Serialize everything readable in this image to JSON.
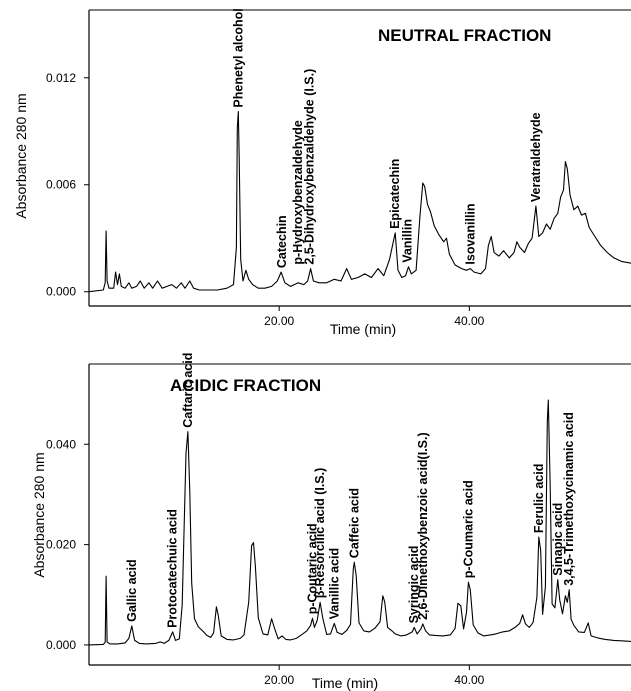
{
  "chart_data": [
    {
      "type": "line",
      "title": "NEUTRAL FRACTION",
      "xlabel": "Time (min)",
      "ylabel": "Absorbance 280 nm",
      "xlim": [
        0,
        57
      ],
      "ylim": [
        -0.0008,
        0.0158
      ],
      "xticks": [
        "20.00",
        "40.00"
      ],
      "xtick_values": [
        20,
        40
      ],
      "yticks": [
        "0.000",
        "0.006",
        "0.012"
      ],
      "ytick_values": [
        0,
        0.006,
        0.012
      ],
      "peak_labels": [
        {
          "text": "Phenetyl alcohol",
          "x": 15.7,
          "y": 0.0101
        },
        {
          "text": "Catechin",
          "x": 20.3,
          "y": 0.0011
        },
        {
          "text": "p-Hydroxybenzaldehyde",
          "x": 22.0,
          "y": 0.0013
        },
        {
          "text": "2,5-Dihydroxybenzaldehyde (I.S.)",
          "x": 23.2,
          "y": 0.0013
        },
        {
          "text": "Epicatechin",
          "x": 32.2,
          "y": 0.0033
        },
        {
          "text": "Vanillin",
          "x": 33.5,
          "y": 0.0014
        },
        {
          "text": "Isovanillin",
          "x": 40.1,
          "y": 0.0013
        },
        {
          "text": "Veratraldehyde",
          "x": 47.0,
          "y": 0.0048
        }
      ],
      "points": [
        [
          0,
          0
        ],
        [
          1.5,
          0.0001
        ],
        [
          1.7,
          0.0005
        ],
        [
          1.8,
          0.0034
        ],
        [
          1.9,
          0.0006
        ],
        [
          2.1,
          0.0002
        ],
        [
          2.6,
          0.0002
        ],
        [
          2.8,
          0.0011
        ],
        [
          3,
          0.0004
        ],
        [
          3.2,
          0.001
        ],
        [
          3.4,
          0.0003
        ],
        [
          3.8,
          0.0002
        ],
        [
          4.2,
          0.0005
        ],
        [
          4.5,
          0.0002
        ],
        [
          5,
          0.0003
        ],
        [
          5.4,
          0.0006
        ],
        [
          5.8,
          0.0002
        ],
        [
          6.3,
          0.0005
        ],
        [
          6.7,
          0.0002
        ],
        [
          7.2,
          0.0006
        ],
        [
          7.7,
          0.0002
        ],
        [
          8.2,
          0.0003
        ],
        [
          8.7,
          0.0004
        ],
        [
          9.2,
          0.0002
        ],
        [
          9.7,
          0.0005
        ],
        [
          10.1,
          0.0002
        ],
        [
          10.6,
          0.0006
        ],
        [
          11,
          0.0002
        ],
        [
          11.6,
          0.0001
        ],
        [
          12.5,
          0.0001
        ],
        [
          13.5,
          0.0001
        ],
        [
          14.5,
          0.0002
        ],
        [
          15.2,
          0.0004
        ],
        [
          15.5,
          0.0025
        ],
        [
          15.6,
          0.0092
        ],
        [
          15.7,
          0.0101
        ],
        [
          15.8,
          0.0075
        ],
        [
          15.95,
          0.0018
        ],
        [
          16.2,
          0.0006
        ],
        [
          16.5,
          0.0012
        ],
        [
          16.8,
          0.0007
        ],
        [
          17.2,
          0.0004
        ],
        [
          17.8,
          0.0002
        ],
        [
          18.5,
          0.0002
        ],
        [
          19.2,
          0.0003
        ],
        [
          19.8,
          0.0006
        ],
        [
          20.2,
          0.0011
        ],
        [
          20.6,
          0.0005
        ],
        [
          21.2,
          0.0003
        ],
        [
          22,
          0.0005
        ],
        [
          22.6,
          0.0004
        ],
        [
          23,
          0.0006
        ],
        [
          23.3,
          0.0013
        ],
        [
          23.6,
          0.0006
        ],
        [
          24.2,
          0.0005
        ],
        [
          25,
          0.0005
        ],
        [
          25.8,
          0.0007
        ],
        [
          26.5,
          0.0006
        ],
        [
          27.1,
          0.0013
        ],
        [
          27.6,
          0.0007
        ],
        [
          28.3,
          0.0008
        ],
        [
          29,
          0.001
        ],
        [
          29.7,
          0.0008
        ],
        [
          30.4,
          0.0013
        ],
        [
          31,
          0.0009
        ],
        [
          31.6,
          0.0018
        ],
        [
          32,
          0.0028
        ],
        [
          32.2,
          0.0033
        ],
        [
          32.5,
          0.0012
        ],
        [
          32.9,
          0.0008
        ],
        [
          33.3,
          0.0009
        ],
        [
          33.6,
          0.0014
        ],
        [
          33.9,
          0.001
        ],
        [
          34.4,
          0.0012
        ],
        [
          34.8,
          0.0042
        ],
        [
          35.1,
          0.0061
        ],
        [
          35.3,
          0.0059
        ],
        [
          35.6,
          0.0049
        ],
        [
          35.9,
          0.0045
        ],
        [
          36.3,
          0.0037
        ],
        [
          36.8,
          0.0032
        ],
        [
          37.3,
          0.0028
        ],
        [
          37.6,
          0.003
        ],
        [
          37.9,
          0.0021
        ],
        [
          38.5,
          0.0015
        ],
        [
          39.2,
          0.0013
        ],
        [
          39.7,
          0.0012
        ],
        [
          40.1,
          0.0013
        ],
        [
          40.5,
          0.0011
        ],
        [
          41.2,
          0.001
        ],
        [
          41.7,
          0.0013
        ],
        [
          42,
          0.0026
        ],
        [
          42.3,
          0.0031
        ],
        [
          42.6,
          0.0022
        ],
        [
          43.1,
          0.002
        ],
        [
          43.6,
          0.0023
        ],
        [
          44.2,
          0.0019
        ],
        [
          44.7,
          0.0022
        ],
        [
          45,
          0.0028
        ],
        [
          45.3,
          0.0025
        ],
        [
          45.8,
          0.0022
        ],
        [
          46.2,
          0.0027
        ],
        [
          46.6,
          0.003
        ],
        [
          47,
          0.0048
        ],
        [
          47.3,
          0.0031
        ],
        [
          47.7,
          0.0033
        ],
        [
          48.1,
          0.0038
        ],
        [
          48.5,
          0.0035
        ],
        [
          48.9,
          0.0041
        ],
        [
          49.3,
          0.0044
        ],
        [
          49.6,
          0.0053
        ],
        [
          49.9,
          0.0057
        ],
        [
          50.1,
          0.0073
        ],
        [
          50.3,
          0.0069
        ],
        [
          50.6,
          0.0054
        ],
        [
          51,
          0.0046
        ],
        [
          51.4,
          0.0048
        ],
        [
          51.8,
          0.0043
        ],
        [
          52.2,
          0.0044
        ],
        [
          52.6,
          0.0036
        ],
        [
          53.2,
          0.0031
        ],
        [
          53.8,
          0.0026
        ],
        [
          54.5,
          0.0022
        ],
        [
          55.2,
          0.0019
        ],
        [
          56,
          0.0017
        ],
        [
          57,
          0.0016
        ]
      ]
    },
    {
      "type": "line",
      "title": "ACIDIC FRACTION",
      "xlabel": "Time (min)",
      "ylabel": "Absorbance 280 nm",
      "xlim": [
        0,
        57
      ],
      "ylim": [
        -0.004,
        0.056
      ],
      "xticks": [
        "20.00",
        "40.00"
      ],
      "xtick_values": [
        20,
        40
      ],
      "yticks": [
        "0.000",
        "0.020",
        "0.040"
      ],
      "ytick_values": [
        0,
        0.02,
        0.04
      ],
      "peak_labels": [
        {
          "text": "Gallic acid",
          "x": 4.5,
          "y": 0.0038
        },
        {
          "text": "Protocatechuic acid",
          "x": 8.8,
          "y": 0.0026
        },
        {
          "text": "Caftaric acid",
          "x": 10.4,
          "y": 0.0425
        },
        {
          "text": "p-Coutaric acid",
          "x": 23.5,
          "y": 0.0053
        },
        {
          "text": "β-Resorcilic acid (I.S.)",
          "x": 24.3,
          "y": 0.0085
        },
        {
          "text": "Vanillic acid",
          "x": 25.8,
          "y": 0.0043
        },
        {
          "text": "Caffeic acid",
          "x": 27.9,
          "y": 0.0165
        },
        {
          "text": "Syringic acid",
          "x": 34.2,
          "y": 0.0035
        },
        {
          "text": "2,6-Dimethoxybenzoic acid(I.S.)",
          "x": 35.1,
          "y": 0.0042
        },
        {
          "text": "p-Coumaric acid",
          "x": 39.9,
          "y": 0.0125
        },
        {
          "text": "Ferulic acid",
          "x": 47.3,
          "y": 0.0215
        },
        {
          "text": "Sinapic acid",
          "x": 49.3,
          "y": 0.013
        },
        {
          "text": "3,4,5-Trimethoxycinamic acid",
          "x": 50.5,
          "y": 0.011
        }
      ],
      "points": [
        [
          0,
          0
        ],
        [
          1.5,
          0.0001
        ],
        [
          1.7,
          0.0005
        ],
        [
          1.8,
          0.0137
        ],
        [
          1.9,
          0.0006
        ],
        [
          2.2,
          0.0002
        ],
        [
          3,
          0.0002
        ],
        [
          3.8,
          0.0004
        ],
        [
          4.2,
          0.0013
        ],
        [
          4.5,
          0.0038
        ],
        [
          4.8,
          0.0009
        ],
        [
          5.3,
          0.0003
        ],
        [
          6,
          0.0002
        ],
        [
          7,
          0.0003
        ],
        [
          7.5,
          0.0006
        ],
        [
          7.9,
          0.0003
        ],
        [
          8.4,
          0.0009
        ],
        [
          8.8,
          0.0026
        ],
        [
          9.1,
          0.0009
        ],
        [
          9.5,
          0.0012
        ],
        [
          9.8,
          0.008
        ],
        [
          10,
          0.0232
        ],
        [
          10.2,
          0.0382
        ],
        [
          10.4,
          0.0425
        ],
        [
          10.6,
          0.0305
        ],
        [
          10.8,
          0.0123
        ],
        [
          11.1,
          0.0052
        ],
        [
          11.5,
          0.0036
        ],
        [
          12,
          0.0027
        ],
        [
          12.4,
          0.0019
        ],
        [
          12.8,
          0.0015
        ],
        [
          13.1,
          0.0024
        ],
        [
          13.4,
          0.0076
        ],
        [
          13.6,
          0.0058
        ],
        [
          13.9,
          0.0018
        ],
        [
          14.5,
          0.0011
        ],
        [
          15.2,
          0.001
        ],
        [
          15.9,
          0.0013
        ],
        [
          16.3,
          0.002
        ],
        [
          16.8,
          0.0085
        ],
        [
          17.1,
          0.0198
        ],
        [
          17.3,
          0.0204
        ],
        [
          17.5,
          0.0156
        ],
        [
          17.8,
          0.0054
        ],
        [
          18.3,
          0.0022
        ],
        [
          18.8,
          0.002
        ],
        [
          19.2,
          0.0052
        ],
        [
          19.5,
          0.0034
        ],
        [
          19.9,
          0.0012
        ],
        [
          20.3,
          0.0018
        ],
        [
          20.7,
          0.0011
        ],
        [
          21.2,
          0.001
        ],
        [
          21.8,
          0.0013
        ],
        [
          22.4,
          0.0021
        ],
        [
          22.9,
          0.0028
        ],
        [
          23.3,
          0.0039
        ],
        [
          23.5,
          0.0053
        ],
        [
          23.7,
          0.0035
        ],
        [
          24,
          0.0049
        ],
        [
          24.3,
          0.0085
        ],
        [
          24.6,
          0.0052
        ],
        [
          25,
          0.0021
        ],
        [
          25.4,
          0.0022
        ],
        [
          25.8,
          0.0043
        ],
        [
          26.1,
          0.0025
        ],
        [
          26.6,
          0.0021
        ],
        [
          27.1,
          0.0029
        ],
        [
          27.5,
          0.0041
        ],
        [
          27.8,
          0.0152
        ],
        [
          27.9,
          0.0165
        ],
        [
          28.1,
          0.0138
        ],
        [
          28.4,
          0.0044
        ],
        [
          28.9,
          0.0028
        ],
        [
          29.5,
          0.0026
        ],
        [
          30.1,
          0.0034
        ],
        [
          30.6,
          0.0046
        ],
        [
          30.9,
          0.0098
        ],
        [
          31.1,
          0.0086
        ],
        [
          31.4,
          0.0035
        ],
        [
          31.8,
          0.0029
        ],
        [
          32.2,
          0.0022
        ],
        [
          32.8,
          0.0018
        ],
        [
          33.4,
          0.002
        ],
        [
          34,
          0.0026
        ],
        [
          34.2,
          0.0035
        ],
        [
          34.5,
          0.0022
        ],
        [
          34.9,
          0.0032
        ],
        [
          35.1,
          0.0042
        ],
        [
          35.4,
          0.0028
        ],
        [
          35.8,
          0.002
        ],
        [
          36.4,
          0.0019
        ],
        [
          37.2,
          0.0018
        ],
        [
          38,
          0.002
        ],
        [
          38.5,
          0.0033
        ],
        [
          38.8,
          0.0083
        ],
        [
          39.1,
          0.0078
        ],
        [
          39.4,
          0.0032
        ],
        [
          39.7,
          0.0065
        ],
        [
          39.9,
          0.0125
        ],
        [
          40.1,
          0.011
        ],
        [
          40.4,
          0.004
        ],
        [
          40.9,
          0.0024
        ],
        [
          41.5,
          0.0018
        ],
        [
          42.2,
          0.002
        ],
        [
          42.8,
          0.0022
        ],
        [
          43.5,
          0.0026
        ],
        [
          44.2,
          0.0028
        ],
        [
          44.8,
          0.0035
        ],
        [
          45.3,
          0.0043
        ],
        [
          45.6,
          0.006
        ],
        [
          45.9,
          0.0042
        ],
        [
          46.3,
          0.0035
        ],
        [
          46.7,
          0.0045
        ],
        [
          47.1,
          0.0095
        ],
        [
          47.3,
          0.0215
        ],
        [
          47.5,
          0.0188
        ],
        [
          47.7,
          0.0061
        ],
        [
          48,
          0.0116
        ],
        [
          48.2,
          0.0445
        ],
        [
          48.3,
          0.0488
        ],
        [
          48.5,
          0.0315
        ],
        [
          48.7,
          0.0082
        ],
        [
          49,
          0.0074
        ],
        [
          49.3,
          0.013
        ],
        [
          49.5,
          0.009
        ],
        [
          49.8,
          0.0062
        ],
        [
          50.1,
          0.0098
        ],
        [
          50.3,
          0.0085
        ],
        [
          50.5,
          0.011
        ],
        [
          50.7,
          0.0051
        ],
        [
          51,
          0.0039
        ],
        [
          51.5,
          0.0026
        ],
        [
          52.1,
          0.0025
        ],
        [
          52.5,
          0.0044
        ],
        [
          52.8,
          0.0018
        ],
        [
          53.5,
          0.0014
        ],
        [
          54.3,
          0.0011
        ],
        [
          55.2,
          0.0009
        ],
        [
          56.2,
          0.0008
        ],
        [
          57,
          0.0007
        ]
      ]
    }
  ]
}
